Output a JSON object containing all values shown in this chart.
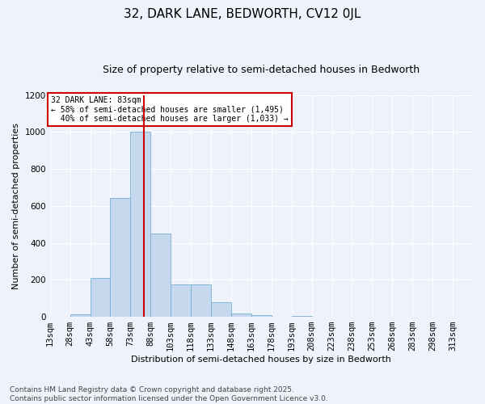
{
  "title": "32, DARK LANE, BEDWORTH, CV12 0JL",
  "subtitle": "Size of property relative to semi-detached houses in Bedworth",
  "xlabel": "Distribution of semi-detached houses by size in Bedworth",
  "ylabel": "Number of semi-detached properties",
  "footer": "Contains HM Land Registry data © Crown copyright and database right 2025.\nContains public sector information licensed under the Open Government Licence v3.0.",
  "bin_labels": [
    "13sqm",
    "28sqm",
    "43sqm",
    "58sqm",
    "73sqm",
    "88sqm",
    "103sqm",
    "118sqm",
    "133sqm",
    "148sqm",
    "163sqm",
    "178sqm",
    "193sqm",
    "208sqm",
    "223sqm",
    "238sqm",
    "253sqm",
    "268sqm",
    "283sqm",
    "298sqm",
    "313sqm"
  ],
  "bin_edges": [
    13,
    28,
    43,
    58,
    73,
    88,
    103,
    118,
    133,
    148,
    163,
    178,
    193,
    208,
    223,
    238,
    253,
    268,
    283,
    298,
    313,
    328
  ],
  "bar_heights": [
    0,
    15,
    210,
    645,
    1000,
    450,
    175,
    175,
    80,
    20,
    10,
    0,
    5,
    0,
    0,
    0,
    0,
    0,
    0,
    0,
    0
  ],
  "bar_color": "#c5d8ee",
  "bar_edge_color": "#7aafd4",
  "property_size": 83,
  "property_label": "32 DARK LANE: 83sqm",
  "pct_smaller": 58,
  "pct_larger": 40,
  "n_smaller": 1495,
  "n_larger": 1033,
  "vline_color": "#cc0000",
  "ylim": [
    0,
    1200
  ],
  "yticks": [
    0,
    200,
    400,
    600,
    800,
    1000,
    1200
  ],
  "annotation_box_color": "#cc0000",
  "bg_color": "#eef2fa",
  "grid_color": "#ffffff",
  "title_fontsize": 11,
  "subtitle_fontsize": 9,
  "axis_label_fontsize": 8,
  "tick_fontsize": 7.5,
  "footer_fontsize": 6.5
}
